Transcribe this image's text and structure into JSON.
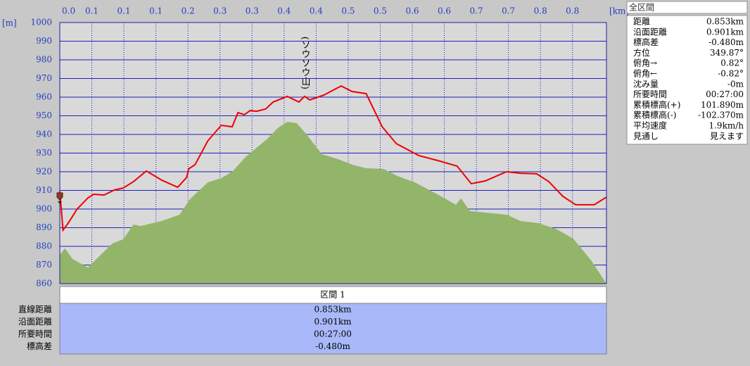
{
  "chart_data": {
    "type": "profile",
    "y_label": "[m]",
    "x_label": "[km]",
    "xlim": [
      0,
      0.853
    ],
    "xticks": [
      {
        "value": 0,
        "label": "0.0"
      },
      {
        "value": 0.05,
        "label": "0.1"
      },
      {
        "value": 0.1,
        "label": "0.1"
      },
      {
        "value": 0.15,
        "label": "0.1"
      },
      {
        "value": 0.2,
        "label": "0.2"
      },
      {
        "value": 0.25,
        "label": "0.3"
      },
      {
        "value": 0.3,
        "label": "0.3"
      },
      {
        "value": 0.35,
        "label": "0.4"
      },
      {
        "value": 0.4,
        "label": "0.4"
      },
      {
        "value": 0.45,
        "label": "0.5"
      },
      {
        "value": 0.5,
        "label": "0.5"
      },
      {
        "value": 0.55,
        "label": "0.6"
      },
      {
        "value": 0.6,
        "label": "0.6"
      },
      {
        "value": 0.65,
        "label": "0.7"
      },
      {
        "value": 0.7,
        "label": "0.7"
      },
      {
        "value": 0.75,
        "label": "0.8"
      },
      {
        "value": 0.8,
        "label": "0.8"
      }
    ],
    "ylim": [
      860,
      1000
    ],
    "yticks": [
      860,
      870,
      880,
      890,
      900,
      910,
      920,
      930,
      940,
      950,
      960,
      970,
      980,
      990,
      1000
    ],
    "grid": true,
    "series": [
      {
        "style": "area",
        "color": "#92b56a",
        "x": [
          0,
          0.008,
          0.02,
          0.044,
          0.066,
          0.082,
          0.099,
          0.115,
          0.126,
          0.159,
          0.187,
          0.203,
          0.231,
          0.252,
          0.269,
          0.291,
          0.324,
          0.34,
          0.355,
          0.37,
          0.384,
          0.409,
          0.434,
          0.456,
          0.478,
          0.505,
          0.527,
          0.554,
          0.587,
          0.618,
          0.626,
          0.64,
          0.664,
          0.697,
          0.719,
          0.746,
          0.774,
          0.801,
          0.829,
          0.853
        ],
        "values": [
          875.5,
          878.9,
          873.2,
          868.7,
          876.2,
          881.5,
          883.8,
          891.7,
          890.9,
          893.6,
          897.0,
          905.3,
          914.3,
          916.6,
          920.0,
          928.3,
          937.7,
          943.4,
          946.8,
          946.0,
          940.4,
          929.4,
          926.8,
          923.8,
          921.9,
          921.5,
          917.7,
          914.3,
          908.3,
          902.3,
          905.7,
          898.9,
          898.1,
          897.0,
          893.6,
          892.5,
          889.4,
          884.2,
          872.5,
          860.0
        ]
      },
      {
        "style": "line",
        "color": "#ee0000",
        "x": [
          0,
          0.005,
          0.013,
          0.027,
          0.044,
          0.053,
          0.069,
          0.085,
          0.099,
          0.115,
          0.135,
          0.159,
          0.184,
          0.198,
          0.201,
          0.211,
          0.231,
          0.252,
          0.269,
          0.278,
          0.288,
          0.297,
          0.307,
          0.321,
          0.333,
          0.355,
          0.373,
          0.382,
          0.39,
          0.412,
          0.439,
          0.456,
          0.478,
          0.503,
          0.525,
          0.56,
          0.593,
          0.62,
          0.642,
          0.664,
          0.697,
          0.719,
          0.744,
          0.763,
          0.785,
          0.805,
          0.834,
          0.853
        ],
        "values": [
          909.4,
          888.7,
          892.4,
          900.0,
          906.0,
          907.9,
          907.5,
          910.2,
          911.3,
          914.7,
          920.4,
          915.5,
          911.7,
          917.0,
          921.5,
          923.8,
          936.6,
          944.9,
          944.1,
          951.7,
          950.6,
          952.8,
          952.4,
          953.6,
          957.4,
          960.4,
          957.4,
          960.4,
          958.5,
          961.1,
          966.0,
          963.0,
          961.9,
          944.1,
          935.1,
          928.7,
          925.7,
          923.0,
          913.6,
          915.1,
          920.0,
          919.2,
          918.9,
          914.7,
          906.8,
          902.3,
          902.3,
          906.4
        ]
      }
    ],
    "annotation": {
      "text": "(ソウソウ山)",
      "x": 0.382,
      "y": 960.4
    }
  },
  "summary": {
    "title": "全区間",
    "rows": [
      [
        "距離",
        "0.853km"
      ],
      [
        "沿面距離",
        "0.901km"
      ],
      [
        "標高差",
        "-0.480m"
      ],
      [
        "方位",
        "349.87°"
      ],
      [
        "俯角→",
        "0.82°"
      ],
      [
        "俯角←",
        "-0.82°"
      ],
      [
        "沈み量",
        "-0m"
      ],
      [
        "所要時間",
        "00:27:00"
      ],
      [
        "累積標高(+)",
        "101.890m"
      ],
      [
        "累積標高(-)",
        "-102.370m"
      ],
      [
        "平均速度",
        "1.9km/h"
      ],
      [
        "見通し",
        "見えます"
      ]
    ]
  },
  "sections": {
    "header": "区間 1",
    "labels": [
      "直線距離",
      "沿面距離",
      "所要時間",
      "標高差"
    ],
    "values": [
      "0.853km",
      "0.901km",
      "00:27:00",
      "-0.480m"
    ]
  }
}
